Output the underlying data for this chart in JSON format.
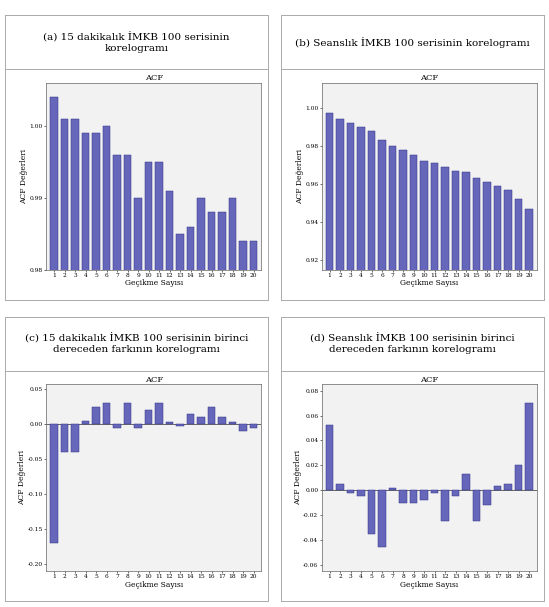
{
  "panel_a": {
    "title_panel": "(a) 15 dakikalık İMKB 100 serisinin\nkorelogramı",
    "acf_title": "ACF",
    "xlabel": "Geçikme Sayısı",
    "ylabel": "ACF Değerleri",
    "values": [
      1.004,
      1.001,
      1.001,
      0.999,
      0.999,
      1.0,
      0.996,
      0.996,
      0.99,
      0.995,
      0.995,
      0.991,
      0.985,
      0.986,
      0.99,
      0.988,
      0.988,
      0.99,
      0.984,
      0.984
    ],
    "ylim": [
      0.982,
      1.006
    ],
    "yticks": [
      0.98,
      0.99,
      1.0
    ],
    "ytick_labels": [
      "0.98",
      "0.99",
      "1.00"
    ]
  },
  "panel_b": {
    "title_panel": "(b) Seanslık İMKB 100 serisinin korelogramı",
    "acf_title": "ACF",
    "xlabel": "Geçikme Sayısı",
    "ylabel": "ACF Değerleri",
    "values": [
      0.997,
      0.994,
      0.992,
      0.99,
      0.988,
      0.983,
      0.98,
      0.978,
      0.975,
      0.972,
      0.971,
      0.969,
      0.967,
      0.966,
      0.963,
      0.961,
      0.959,
      0.957,
      0.952,
      0.947
    ],
    "ylim": [
      0.915,
      1.013
    ],
    "yticks": [
      0.92,
      0.94,
      0.96,
      0.98,
      1.0
    ],
    "ytick_labels": [
      "0.92",
      "0.94",
      "0.96",
      "0.98",
      "1.00"
    ]
  },
  "panel_c": {
    "title_panel": "(c) 15 dakikalık İMKB 100 serisinin birinci\ndereceden farkının korelogramı",
    "acf_title": "ACF",
    "xlabel": "Geçikme Sayısı",
    "ylabel": "ACF Değerleri",
    "values": [
      -0.17,
      -0.04,
      -0.04,
      0.005,
      0.025,
      0.03,
      -0.005,
      0.03,
      -0.005,
      0.02,
      0.03,
      0.003,
      -0.003,
      0.015,
      0.01,
      0.025,
      0.01,
      0.003,
      -0.01,
      -0.005
    ],
    "ylim": [
      -0.21,
      0.057
    ],
    "yticks": [
      -0.2,
      -0.15,
      -0.1,
      -0.05,
      0.0,
      0.05
    ],
    "ytick_labels": [
      "-0.20",
      "-0.15",
      "-0.10",
      "-0.05",
      "0.00",
      "0.05"
    ]
  },
  "panel_d": {
    "title_panel": "(d) Seanslık İMKB 100 serisinin birinci\ndereceden farkının korelogramı",
    "acf_title": "ACF",
    "xlabel": "Geçikme Sayısı",
    "ylabel": "ACF Değerleri",
    "values": [
      0.052,
      0.005,
      -0.002,
      -0.005,
      -0.035,
      -0.046,
      0.002,
      -0.01,
      -0.01,
      -0.008,
      -0.002,
      -0.025,
      -0.005,
      0.013,
      -0.025,
      -0.012,
      0.003,
      0.005,
      0.02,
      0.07
    ],
    "ylim": [
      -0.065,
      0.085
    ],
    "yticks": [
      -0.06,
      -0.04,
      -0.02,
      0.0,
      0.02,
      0.04,
      0.06,
      0.08
    ],
    "ytick_labels": [
      "-0.06",
      "-0.04",
      "-0.02",
      "0.00",
      "0.02",
      "0.04",
      "0.06",
      "0.08"
    ]
  },
  "bar_color": "#6666bb",
  "bar_edge": "#333388",
  "fig_background": "#ffffff",
  "border_color": "#aaaaaa",
  "plot_bg": "#f2f2f2",
  "title_fontsize": 7.5,
  "acf_title_fontsize": 6,
  "label_fontsize": 5.5,
  "tick_fontsize": 4.2
}
